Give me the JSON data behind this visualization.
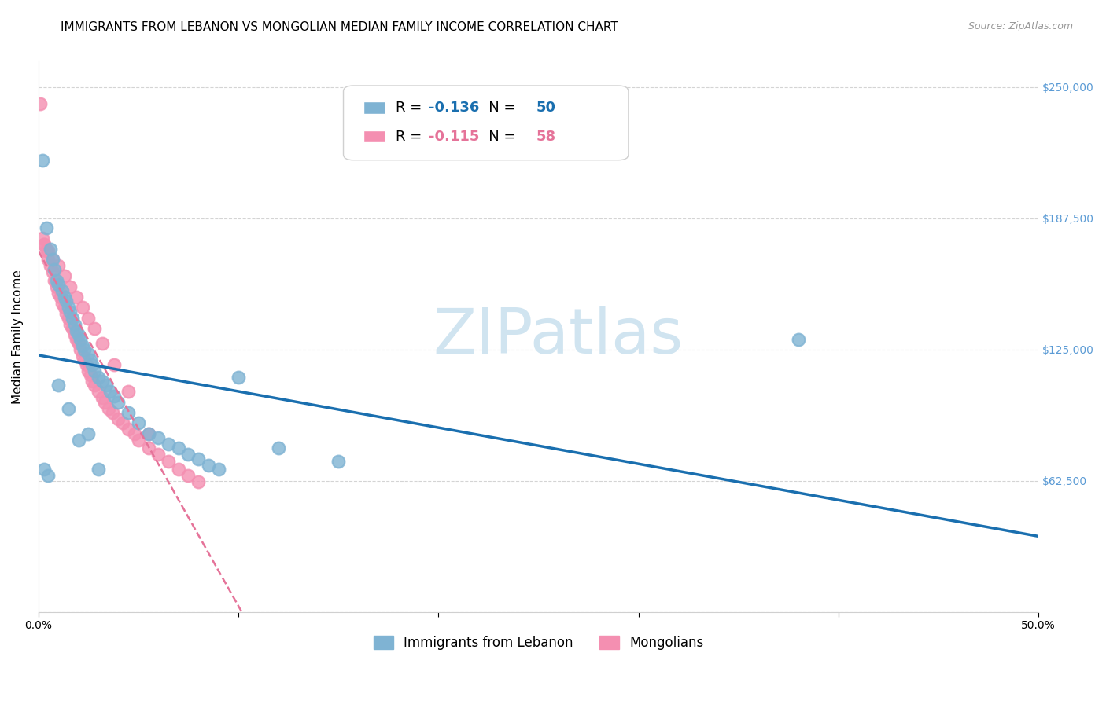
{
  "title": "IMMIGRANTS FROM LEBANON VS MONGOLIAN MEDIAN FAMILY INCOME CORRELATION CHART",
  "source": "Source: ZipAtlas.com",
  "ylabel": "Median Family Income",
  "xlim": [
    0.0,
    0.5
  ],
  "ylim": [
    0,
    262500
  ],
  "yticks": [
    0,
    62500,
    125000,
    187500,
    250000
  ],
  "ytick_labels": [
    "",
    "$62,500",
    "$125,000",
    "$187,500",
    "$250,000"
  ],
  "xticks": [
    0.0,
    0.1,
    0.2,
    0.3,
    0.4,
    0.5
  ],
  "xtick_labels": [
    "0.0%",
    "",
    "",
    "",
    "",
    "50.0%"
  ],
  "lebanon_R": "-0.136",
  "lebanon_N": "50",
  "mongolia_R": "-0.115",
  "mongolia_N": "58",
  "lebanon_x": [
    0.002,
    0.004,
    0.006,
    0.007,
    0.008,
    0.009,
    0.01,
    0.012,
    0.013,
    0.014,
    0.015,
    0.016,
    0.017,
    0.018,
    0.019,
    0.02,
    0.021,
    0.022,
    0.023,
    0.025,
    0.026,
    0.027,
    0.028,
    0.03,
    0.032,
    0.034,
    0.036,
    0.038,
    0.04,
    0.045,
    0.05,
    0.055,
    0.06,
    0.065,
    0.07,
    0.075,
    0.08,
    0.085,
    0.09,
    0.1,
    0.12,
    0.15,
    0.38,
    0.003,
    0.005,
    0.01,
    0.015,
    0.02,
    0.025,
    0.03
  ],
  "lebanon_y": [
    215000,
    183000,
    173000,
    168000,
    163000,
    158000,
    156000,
    153000,
    150000,
    148000,
    145000,
    143000,
    140000,
    137000,
    134000,
    132000,
    130000,
    127000,
    125000,
    123000,
    120000,
    118000,
    115000,
    112000,
    110000,
    108000,
    105000,
    103000,
    100000,
    95000,
    90000,
    85000,
    83000,
    80000,
    78000,
    75000,
    73000,
    70000,
    68000,
    112000,
    78000,
    72000,
    130000,
    68000,
    65000,
    108000,
    97000,
    82000,
    85000,
    68000
  ],
  "mongolia_x": [
    0.001,
    0.002,
    0.003,
    0.004,
    0.005,
    0.006,
    0.007,
    0.008,
    0.009,
    0.01,
    0.011,
    0.012,
    0.013,
    0.014,
    0.015,
    0.016,
    0.017,
    0.018,
    0.019,
    0.02,
    0.021,
    0.022,
    0.023,
    0.024,
    0.025,
    0.026,
    0.027,
    0.028,
    0.03,
    0.032,
    0.033,
    0.035,
    0.037,
    0.04,
    0.042,
    0.045,
    0.048,
    0.05,
    0.055,
    0.06,
    0.065,
    0.07,
    0.075,
    0.08,
    0.003,
    0.005,
    0.007,
    0.01,
    0.013,
    0.016,
    0.019,
    0.022,
    0.025,
    0.028,
    0.032,
    0.038,
    0.045,
    0.055
  ],
  "mongolia_y": [
    242000,
    178000,
    175000,
    172000,
    168000,
    165000,
    162000,
    158000,
    155000,
    152000,
    150000,
    147000,
    145000,
    142000,
    140000,
    137000,
    135000,
    132000,
    130000,
    128000,
    125000,
    122000,
    120000,
    118000,
    115000,
    113000,
    110000,
    108000,
    105000,
    102000,
    100000,
    97000,
    95000,
    92000,
    90000,
    87000,
    85000,
    82000,
    78000,
    75000,
    72000,
    68000,
    65000,
    62000,
    175000,
    172000,
    168000,
    165000,
    160000,
    155000,
    150000,
    145000,
    140000,
    135000,
    128000,
    118000,
    105000,
    85000
  ],
  "lebanon_color": "#7fb3d3",
  "mongolia_color": "#f48fb1",
  "lebanon_line_color": "#1a6faf",
  "mongolia_line_color": "#e57399",
  "ytick_color": "#5b9bd5",
  "background_color": "#ffffff",
  "title_fontsize": 11,
  "axis_label_fontsize": 11,
  "tick_fontsize": 10,
  "legend_fontsize": 13,
  "watermark": "ZIPatlas",
  "watermark_color": "#d0e4f0"
}
